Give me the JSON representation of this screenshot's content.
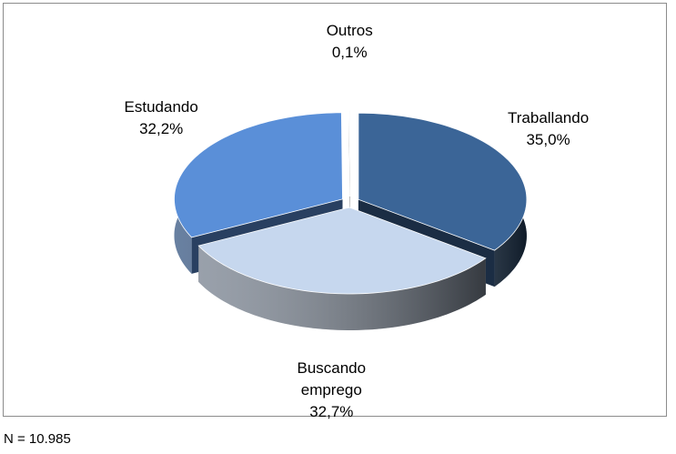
{
  "chart_data": {
    "type": "pie",
    "categories": [
      "Traballando",
      "Buscando emprego",
      "Estudando",
      "Outros"
    ],
    "values": [
      35.0,
      32.7,
      32.2,
      0.1
    ],
    "value_labels": [
      "35,0%",
      "32,7%",
      "32,2%",
      "0,1%"
    ],
    "colors": [
      "#3b6597",
      "#c6d7ee",
      "#5a8fd8",
      "#f4f6fa"
    ],
    "note": "N = 10.985"
  }
}
